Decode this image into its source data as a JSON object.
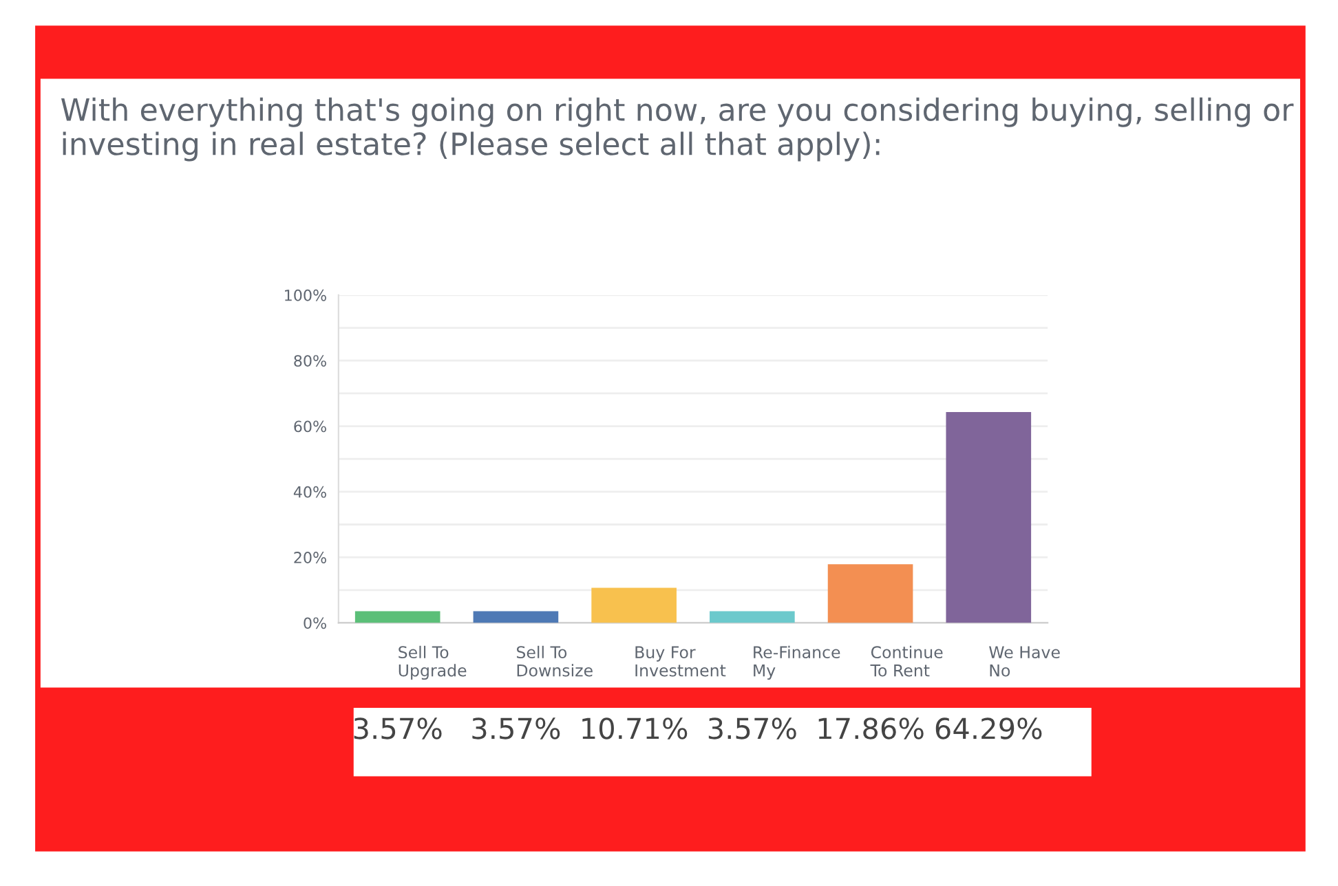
{
  "chart_data": {
    "type": "bar",
    "title": "With everything that's going on right now, are you considering buying, selling or investing in real estate? (Please select all that apply):",
    "categories": [
      "Sell To\nUpgrade",
      "Sell To\nDownsize",
      "Buy For\nInvestment",
      "Re-Finance\nMy",
      "Continue\nTo Rent",
      "We Have\nNo"
    ],
    "values": [
      3.57,
      3.57,
      10.71,
      3.57,
      17.86,
      64.29
    ],
    "colors": [
      "#5bbf78",
      "#4e79b5",
      "#f8c14e",
      "#6cc9cc",
      "#f38f52",
      "#80659a"
    ],
    "value_labels": [
      "3.57%",
      "3.57%",
      "10.71%",
      "3.57%",
      "17.86%",
      "64.29%"
    ],
    "ylim": [
      0,
      100
    ],
    "yticks": [
      {
        "value": 0,
        "label": "0%"
      },
      {
        "value": 10,
        "label": null
      },
      {
        "value": 20,
        "label": "20%"
      },
      {
        "value": 30,
        "label": null
      },
      {
        "value": 40,
        "label": "40%"
      },
      {
        "value": 50,
        "label": null
      },
      {
        "value": 60,
        "label": "60%"
      },
      {
        "value": 70,
        "label": null
      },
      {
        "value": 80,
        "label": "80%"
      },
      {
        "value": 90,
        "label": null
      },
      {
        "value": 100,
        "label": "100%"
      }
    ],
    "grid": "y"
  }
}
